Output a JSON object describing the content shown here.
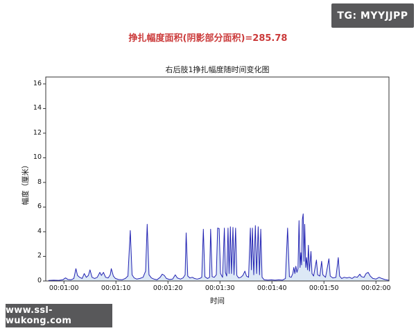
{
  "badge": {
    "text": "TG: MYYJJPP",
    "bg": "#58585a",
    "fg": "#ffffff"
  },
  "heading": {
    "text": "挣扎幅度面积(阴影部分面积)=285.78",
    "color": "#cb3a3a"
  },
  "watermark": {
    "text": "www.ssl-wukong.com",
    "bg": "#58585a",
    "fg": "#ffffff"
  },
  "chart_data": {
    "type": "area",
    "title": "右后肢1挣扎幅度随时间变化图",
    "xlabel": "时间",
    "ylabel": "幅度（厘米）",
    "legend": [],
    "grid": false,
    "x_tick_labels": [
      "00:01:00",
      "00:01:10",
      "00:01:20",
      "00:01:30",
      "00:01:40",
      "00:01:50",
      "00:02:00"
    ],
    "x_tick_seconds": [
      60,
      70,
      80,
      90,
      100,
      110,
      120
    ],
    "y_ticks": [
      0,
      2,
      4,
      6,
      8,
      10,
      12,
      14,
      16
    ],
    "xlim_seconds": [
      56.5,
      122.5
    ],
    "ylim": [
      0,
      16.56
    ],
    "line_color": "#2222b2",
    "fill_color": "#dce8f6",
    "axis_color": "#333333",
    "series": [
      {
        "name": "挣扎幅度",
        "points": [
          [
            57.0,
            0.04
          ],
          [
            58.0,
            0.06
          ],
          [
            59.0,
            0.05
          ],
          [
            59.8,
            0.1
          ],
          [
            60.3,
            0.25
          ],
          [
            60.8,
            0.12
          ],
          [
            61.4,
            0.1
          ],
          [
            61.9,
            0.2
          ],
          [
            62.3,
            1.0
          ],
          [
            62.6,
            0.45
          ],
          [
            63.0,
            0.3
          ],
          [
            63.5,
            0.2
          ],
          [
            63.9,
            0.6
          ],
          [
            64.3,
            0.3
          ],
          [
            64.7,
            0.45
          ],
          [
            65.0,
            0.9
          ],
          [
            65.4,
            0.3
          ],
          [
            65.9,
            0.2
          ],
          [
            66.4,
            0.3
          ],
          [
            66.9,
            0.7
          ],
          [
            67.2,
            0.45
          ],
          [
            67.6,
            0.7
          ],
          [
            68.0,
            0.3
          ],
          [
            68.5,
            0.25
          ],
          [
            68.9,
            0.5
          ],
          [
            69.1,
            1.0
          ],
          [
            69.5,
            0.4
          ],
          [
            69.9,
            0.2
          ],
          [
            70.5,
            0.12
          ],
          [
            71.2,
            0.1
          ],
          [
            71.8,
            0.2
          ],
          [
            72.3,
            0.4
          ],
          [
            72.75,
            4.1
          ],
          [
            73.1,
            0.5
          ],
          [
            73.5,
            0.25
          ],
          [
            74.0,
            0.15
          ],
          [
            74.6,
            0.2
          ],
          [
            75.2,
            0.3
          ],
          [
            75.7,
            0.8
          ],
          [
            76.0,
            4.6
          ],
          [
            76.35,
            0.5
          ],
          [
            76.8,
            0.25
          ],
          [
            77.3,
            0.15
          ],
          [
            77.9,
            0.1
          ],
          [
            78.5,
            0.3
          ],
          [
            78.9,
            0.55
          ],
          [
            79.3,
            0.45
          ],
          [
            79.7,
            0.2
          ],
          [
            80.3,
            0.12
          ],
          [
            80.9,
            0.15
          ],
          [
            81.4,
            0.5
          ],
          [
            81.8,
            0.25
          ],
          [
            82.4,
            0.15
          ],
          [
            82.9,
            0.25
          ],
          [
            83.3,
            0.5
          ],
          [
            83.5,
            3.9
          ],
          [
            83.8,
            0.4
          ],
          [
            84.2,
            0.25
          ],
          [
            84.7,
            0.3
          ],
          [
            85.1,
            0.2
          ],
          [
            85.6,
            0.15
          ],
          [
            86.1,
            0.2
          ],
          [
            86.5,
            0.3
          ],
          [
            86.8,
            4.2
          ],
          [
            87.1,
            0.35
          ],
          [
            87.6,
            0.2
          ],
          [
            88.0,
            0.3
          ],
          [
            88.2,
            4.2
          ],
          [
            88.5,
            0.35
          ],
          [
            88.9,
            0.3
          ],
          [
            89.3,
            0.5
          ],
          [
            89.55,
            4.3
          ],
          [
            89.85,
            4.25
          ],
          [
            90.1,
            0.6
          ],
          [
            90.5,
            0.3
          ],
          [
            90.85,
            4.3
          ],
          [
            91.05,
            0.7
          ],
          [
            91.3,
            0.4
          ],
          [
            91.55,
            4.3
          ],
          [
            91.75,
            0.6
          ],
          [
            92.0,
            4.4
          ],
          [
            92.2,
            0.6
          ],
          [
            92.5,
            4.35
          ],
          [
            92.7,
            0.5
          ],
          [
            93.0,
            4.3
          ],
          [
            93.25,
            0.45
          ],
          [
            93.6,
            0.25
          ],
          [
            94.0,
            0.3
          ],
          [
            94.4,
            0.45
          ],
          [
            94.8,
            0.8
          ],
          [
            95.1,
            0.4
          ],
          [
            95.5,
            0.3
          ],
          [
            95.85,
            4.3
          ],
          [
            96.05,
            0.9
          ],
          [
            96.25,
            4.3
          ],
          [
            96.5,
            0.5
          ],
          [
            96.8,
            4.5
          ],
          [
            97.05,
            0.6
          ],
          [
            97.35,
            4.4
          ],
          [
            97.6,
            0.5
          ],
          [
            97.85,
            4.2
          ],
          [
            98.1,
            0.3
          ],
          [
            98.5,
            0.1
          ],
          [
            99.2,
            0.07
          ],
          [
            99.9,
            0.09
          ],
          [
            100.6,
            0.06
          ],
          [
            101.3,
            0.09
          ],
          [
            102.0,
            0.07
          ],
          [
            102.6,
            0.2
          ],
          [
            103.0,
            4.3
          ],
          [
            103.35,
            0.35
          ],
          [
            103.7,
            0.3
          ],
          [
            104.0,
            0.6
          ],
          [
            104.2,
            1.1
          ],
          [
            104.4,
            0.6
          ],
          [
            104.6,
            1.2
          ],
          [
            104.8,
            0.7
          ],
          [
            105.0,
            1.0
          ],
          [
            105.2,
            4.9
          ],
          [
            105.4,
            1.1
          ],
          [
            105.55,
            2.3
          ],
          [
            105.7,
            1.3
          ],
          [
            105.85,
            5.0
          ],
          [
            106.0,
            5.45
          ],
          [
            106.15,
            1.6
          ],
          [
            106.3,
            4.6
          ],
          [
            106.5,
            1.1
          ],
          [
            106.65,
            1.9
          ],
          [
            106.85,
            0.9
          ],
          [
            107.0,
            2.9
          ],
          [
            107.2,
            0.8
          ],
          [
            107.5,
            2.4
          ],
          [
            107.7,
            0.6
          ],
          [
            108.0,
            0.4
          ],
          [
            108.55,
            1.7
          ],
          [
            108.8,
            0.5
          ],
          [
            109.2,
            0.4
          ],
          [
            109.55,
            1.6
          ],
          [
            109.8,
            0.5
          ],
          [
            110.3,
            0.3
          ],
          [
            110.95,
            1.8
          ],
          [
            111.2,
            0.4
          ],
          [
            111.7,
            0.25
          ],
          [
            112.3,
            0.3
          ],
          [
            112.75,
            1.9
          ],
          [
            113.0,
            0.4
          ],
          [
            113.4,
            0.2
          ],
          [
            113.9,
            0.3
          ],
          [
            114.4,
            0.25
          ],
          [
            114.9,
            0.3
          ],
          [
            115.4,
            0.2
          ],
          [
            115.9,
            0.35
          ],
          [
            116.4,
            0.3
          ],
          [
            116.9,
            0.55
          ],
          [
            117.2,
            0.35
          ],
          [
            117.7,
            0.3
          ],
          [
            118.1,
            0.6
          ],
          [
            118.5,
            0.7
          ],
          [
            118.9,
            0.4
          ],
          [
            119.4,
            0.2
          ],
          [
            120.0,
            0.15
          ],
          [
            120.6,
            0.3
          ],
          [
            121.1,
            0.2
          ],
          [
            121.7,
            0.12
          ],
          [
            122.2,
            0.08
          ],
          [
            122.5,
            0.06
          ]
        ]
      }
    ]
  }
}
